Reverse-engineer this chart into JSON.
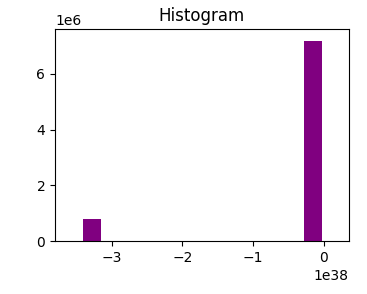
{
  "title": "Histogram",
  "bar_left_x": -3.28e+38,
  "bar_left_height": 800000,
  "bar_right_x": -1.5e+37,
  "bar_right_height": 7200000,
  "bar_width": 2.5e+37,
  "bar_color": "#800080",
  "xlim": [
    -3.8e+38,
    3.5e+37
  ],
  "ylim": [
    0,
    7600000
  ],
  "background_color": "#ffffff",
  "title_fontsize": 12,
  "tick_fontsize": 10
}
